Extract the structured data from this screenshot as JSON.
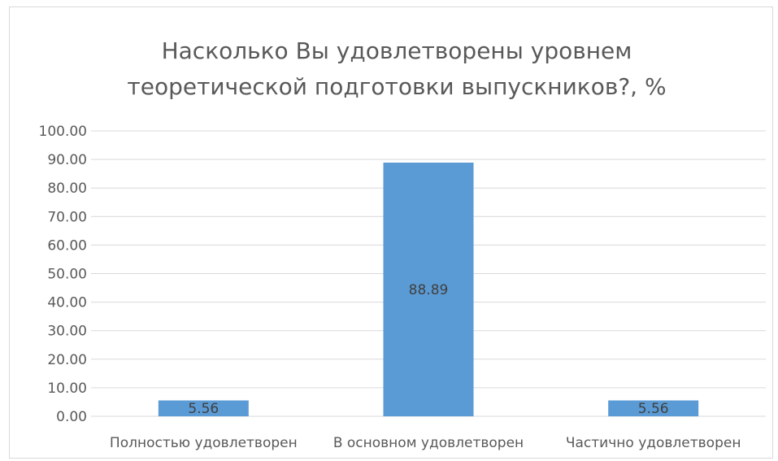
{
  "chart_data": {
    "type": "bar",
    "title_lines": [
      "Насколько Вы удовлетворены уровнем",
      "теоретической подготовки выпускников?, %"
    ],
    "categories": [
      "Полностью удовлетворен",
      "В основном удовлетворен",
      "Частично удовлетворен"
    ],
    "values": [
      5.56,
      88.89,
      5.56
    ],
    "data_labels": [
      "5.56",
      "88.89",
      "5.56"
    ],
    "ylim": [
      0,
      100
    ],
    "yticks": [
      0,
      10,
      20,
      30,
      40,
      50,
      60,
      70,
      80,
      90,
      100
    ],
    "ytick_labels": [
      "0.00",
      "10.00",
      "20.00",
      "30.00",
      "40.00",
      "50.00",
      "60.00",
      "70.00",
      "80.00",
      "90.00",
      "100.00"
    ],
    "grid": true,
    "legend": "none",
    "bar_color": "#5b9bd5",
    "grid_color": "#d9d9d9",
    "text_color": "#595959"
  }
}
